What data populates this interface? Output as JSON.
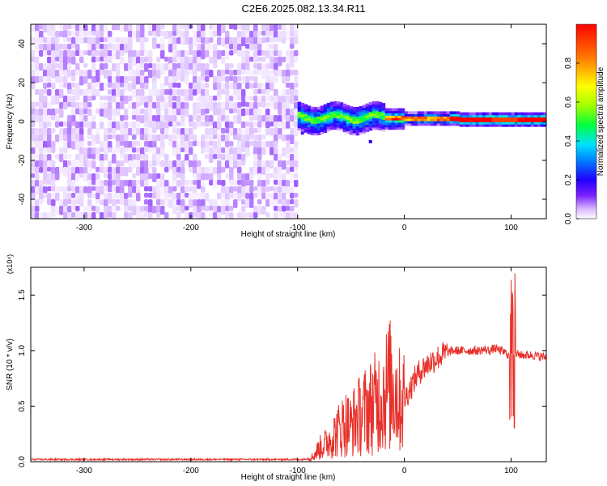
{
  "title": "C2E6.2025.082.13.34.R11",
  "chart_data": [
    {
      "type": "heatmap",
      "xlabel": "Height of straight line (km)",
      "ylabel": "Frequency (Hz)",
      "xlim": [
        -350,
        133
      ],
      "ylim": [
        -50,
        50
      ],
      "xticks": [
        -300,
        -200,
        -100,
        0,
        100
      ],
      "yticks": [
        -40,
        -20,
        0,
        20,
        40
      ],
      "colorbar": {
        "label": "Normalized spectral amplitude",
        "range": [
          0.0,
          1.0
        ],
        "ticks": [
          "0.0",
          "0.2",
          "0.4",
          "0.6",
          "0.8"
        ],
        "colormap": [
          "#ffffff",
          "#d9b8ff",
          "#7a20ff",
          "#2000ff",
          "#0080ff",
          "#00e0ff",
          "#00ff40",
          "#a0ff00",
          "#ffff00",
          "#ff8000",
          "#ff0000"
        ]
      },
      "regions": [
        {
          "x_range": [
            -350,
            -100
          ],
          "y_range": [
            -50,
            50
          ],
          "description": "broadband noise",
          "amplitude_range": [
            0.0,
            0.15
          ]
        },
        {
          "x_range": [
            -100,
            133
          ],
          "y_range": [
            -3,
            5
          ],
          "description": "narrow signal line near 0-2 Hz",
          "amplitude_range": [
            0.2,
            1.0
          ]
        }
      ]
    },
    {
      "type": "line",
      "xlabel": "Height of straight line (km)",
      "ylabel": "SNR (10 * v/v)",
      "y_multiplier": "(x10⁴)",
      "xlim": [
        -350,
        133
      ],
      "ylim": [
        0.0,
        1.75
      ],
      "xticks": [
        -300,
        -200,
        -100,
        0,
        100
      ],
      "yticks": [
        "0.0",
        "0.5",
        "1.0",
        "1.5"
      ],
      "series": [
        {
          "color": "#e8302a",
          "x": [
            -350,
            -300,
            -250,
            -200,
            -150,
            -100,
            -95,
            -90,
            -85,
            -80,
            -75,
            -70,
            -65,
            -60,
            -55,
            -50,
            -45,
            -40,
            -35,
            -30,
            -25,
            -20,
            -15,
            -10,
            -5,
            0,
            5,
            10,
            15,
            20,
            25,
            30,
            35,
            40,
            45,
            50,
            55,
            60,
            65,
            70,
            75,
            80,
            85,
            90,
            95,
            98,
            100,
            102,
            105,
            110,
            115,
            120,
            125,
            133
          ],
          "y": [
            0.02,
            0.02,
            0.02,
            0.02,
            0.02,
            0.02,
            0.02,
            0.03,
            0.05,
            0.12,
            0.15,
            0.2,
            0.25,
            0.3,
            0.35,
            0.32,
            0.4,
            0.42,
            0.48,
            0.5,
            0.55,
            0.6,
            0.68,
            0.7,
            0.55,
            0.56,
            0.65,
            0.75,
            0.82,
            0.86,
            0.9,
            0.93,
            0.96,
            0.98,
            1.0,
            1.0,
            1.0,
            1.0,
            1.0,
            1.0,
            1.01,
            1.0,
            1.02,
            1.0,
            0.98,
            0.95,
            1.7,
            0.95,
            0.97,
            0.96,
            0.96,
            0.96,
            0.95,
            0.94
          ]
        }
      ]
    }
  ]
}
